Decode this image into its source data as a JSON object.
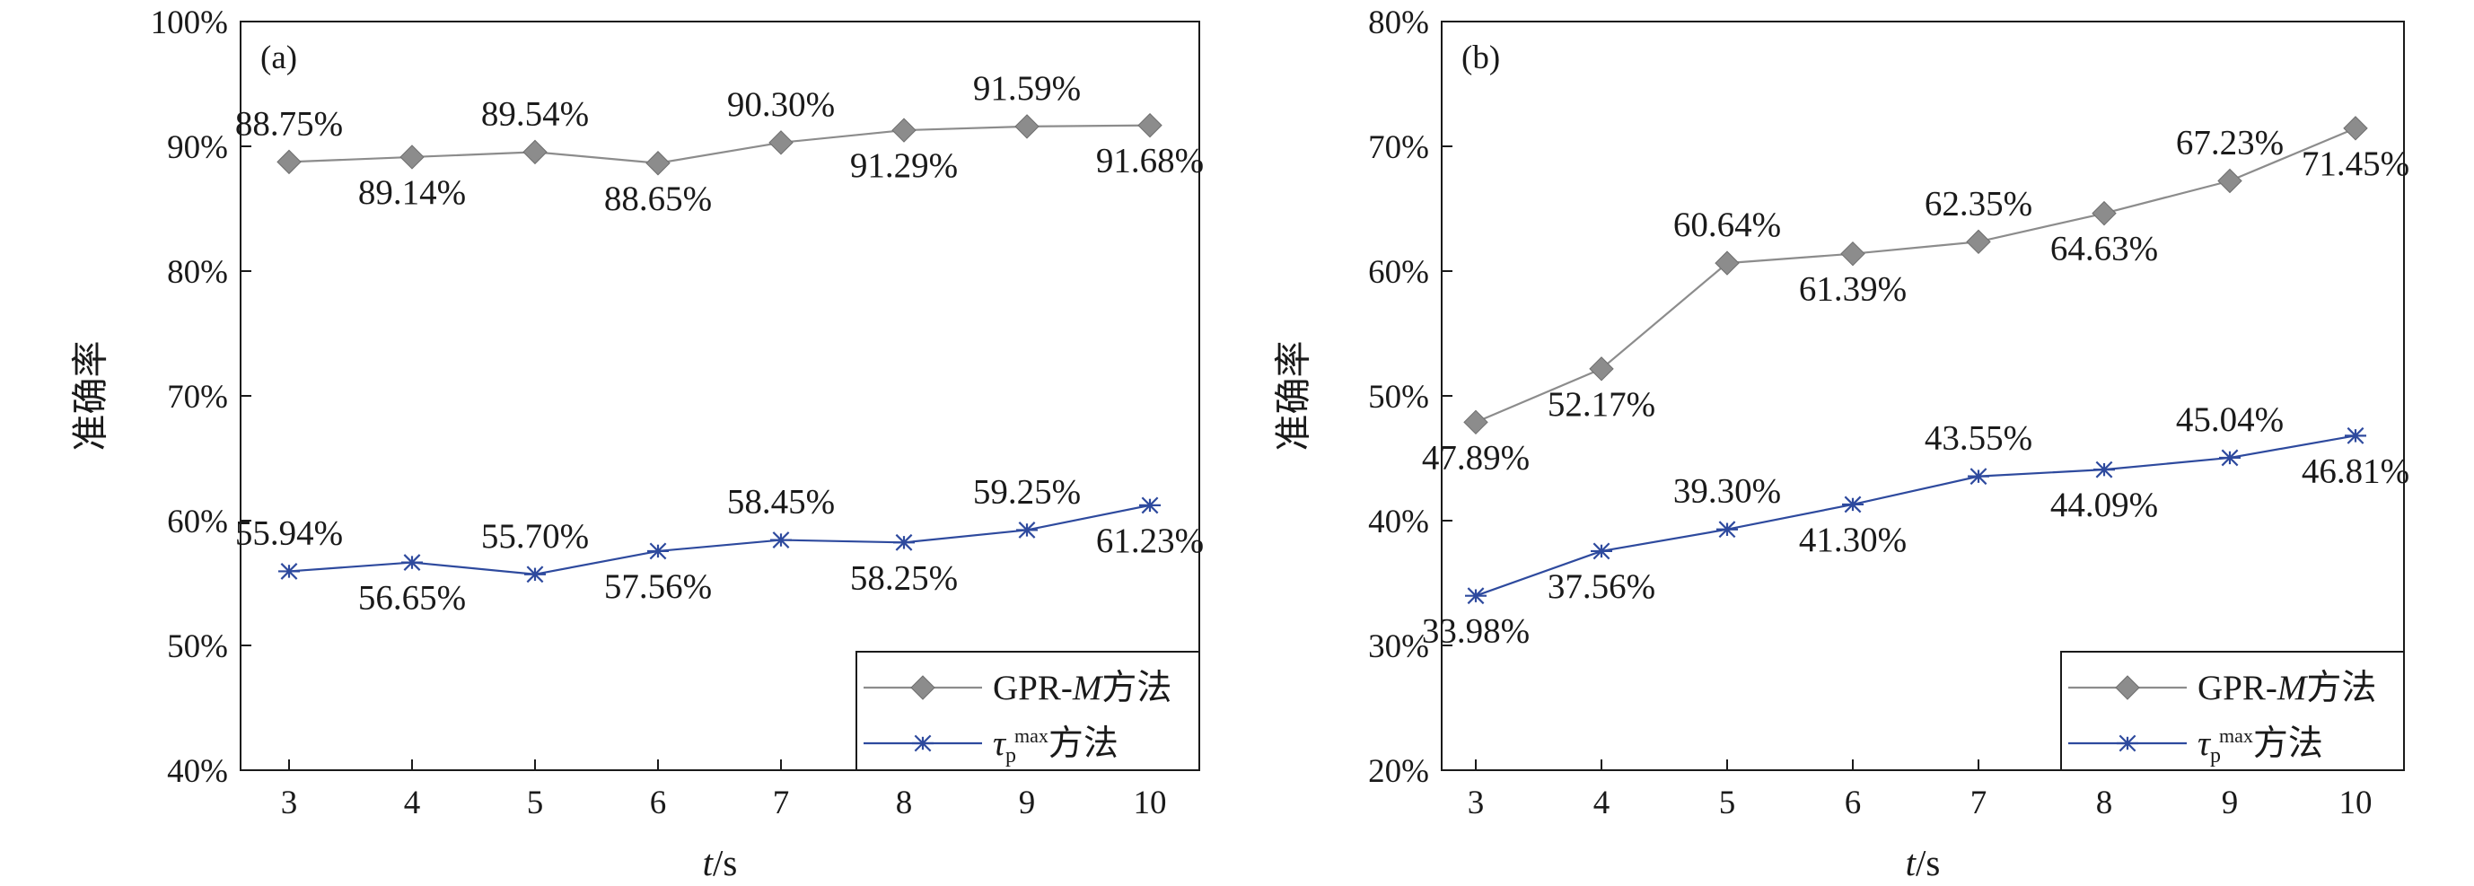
{
  "chart_data": [
    {
      "type": "line",
      "panel_label": "(a)",
      "xlabel_italic": "t",
      "xlabel_unit": "/s",
      "ylabel": "准确率",
      "categories": [
        "3",
        "4",
        "5",
        "6",
        "7",
        "8",
        "9",
        "10"
      ],
      "x": [
        3,
        4,
        5,
        6,
        7,
        8,
        9,
        10
      ],
      "ylim": [
        40,
        100
      ],
      "yticks": [
        "40%",
        "50%",
        "60%",
        "70%",
        "80%",
        "90%",
        "100%"
      ],
      "grid": false,
      "legend_position": "bottom-right",
      "series": [
        {
          "name": "GPR-M方法",
          "name_prefix": "GPR-",
          "name_italic": "M",
          "name_suffix": "方法",
          "marker": "diamond",
          "color": "#8c8c8c",
          "values": [
            88.75,
            89.14,
            89.54,
            88.65,
            90.3,
            91.29,
            91.59,
            91.68
          ],
          "labels": [
            "88.75%",
            "89.14%",
            "89.54%",
            "88.65%",
            "90.30%",
            "91.29%",
            "91.59%",
            "91.68%"
          ],
          "label_side": [
            "above",
            "below",
            "above",
            "below",
            "above",
            "below",
            "above",
            "below"
          ]
        },
        {
          "name": "τpmax方法",
          "name_main": "τ",
          "name_sub": "p",
          "name_sup": "max",
          "name_suffix": "方法",
          "marker": "asterisk",
          "color": "#2e4a9e",
          "values": [
            55.94,
            56.65,
            55.7,
            57.56,
            58.45,
            58.25,
            59.25,
            61.23
          ],
          "labels": [
            "55.94%",
            "56.65%",
            "55.70%",
            "57.56%",
            "58.45%",
            "58.25%",
            "59.25%",
            "61.23%"
          ],
          "label_side": [
            "above",
            "below",
            "above",
            "below",
            "above",
            "below",
            "above",
            "below"
          ]
        }
      ]
    },
    {
      "type": "line",
      "panel_label": "(b)",
      "xlabel_italic": "t",
      "xlabel_unit": "/s",
      "ylabel": "准确率",
      "categories": [
        "3",
        "4",
        "5",
        "6",
        "7",
        "8",
        "9",
        "10"
      ],
      "x": [
        3,
        4,
        5,
        6,
        7,
        8,
        9,
        10
      ],
      "ylim": [
        20,
        80
      ],
      "yticks": [
        "20%",
        "30%",
        "40%",
        "50%",
        "60%",
        "70%",
        "80%"
      ],
      "grid": false,
      "legend_position": "bottom-right",
      "series": [
        {
          "name": "GPR-M方法",
          "name_prefix": "GPR-",
          "name_italic": "M",
          "name_suffix": "方法",
          "marker": "diamond",
          "color": "#8c8c8c",
          "values": [
            47.89,
            52.17,
            60.64,
            61.39,
            62.35,
            64.63,
            67.23,
            71.45
          ],
          "labels": [
            "47.89%",
            "52.17%",
            "60.64%",
            "61.39%",
            "62.35%",
            "64.63%",
            "67.23%",
            "71.45%"
          ],
          "label_side": [
            "below",
            "below",
            "above",
            "below",
            "above",
            "below",
            "above",
            "below"
          ]
        },
        {
          "name": "τpmax方法",
          "name_main": "τ",
          "name_sub": "p",
          "name_sup": "max",
          "name_suffix": "方法",
          "marker": "asterisk",
          "color": "#2e4a9e",
          "values": [
            33.98,
            37.56,
            39.3,
            41.3,
            43.55,
            44.09,
            45.04,
            46.81
          ],
          "labels": [
            "33.98%",
            "37.56%",
            "39.30%",
            "41.30%",
            "43.55%",
            "44.09%",
            "45.04%",
            "46.81%"
          ],
          "label_side": [
            "below",
            "below",
            "above",
            "below",
            "above",
            "below",
            "above",
            "below"
          ]
        }
      ]
    }
  ]
}
